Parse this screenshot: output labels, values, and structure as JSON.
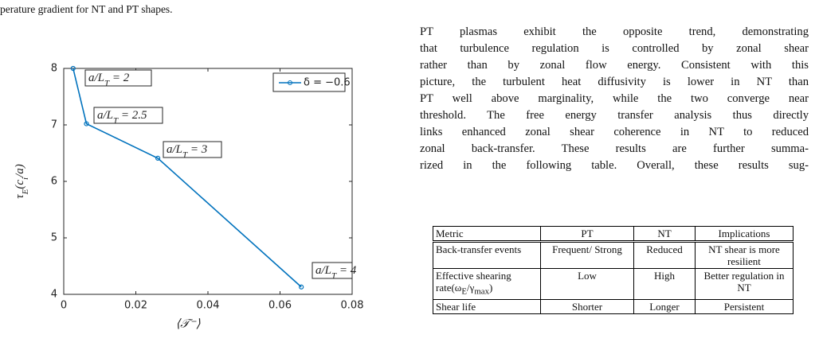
{
  "caption_tail": "perature gradient for NT and PT shapes.",
  "chart_data": {
    "type": "line",
    "x": [
      0.0026,
      0.0063,
      0.0261,
      0.0659
    ],
    "series": [
      {
        "name": "δ = −0.6",
        "color": "#0072bd",
        "values": [
          8.0,
          7.02,
          6.41,
          4.13
        ]
      }
    ],
    "xlim": [
      0,
      0.08
    ],
    "xticks": [
      0,
      0.02,
      0.04,
      0.06,
      0.08
    ],
    "ylim": [
      4,
      8
    ],
    "yticks": [
      4,
      5,
      6,
      7,
      8
    ],
    "x_label": "⟨𝒯⁻⟩",
    "y_label": [
      "τ",
      "E",
      "(c",
      "i",
      "/a)"
    ],
    "annotations": [
      [
        "a/L",
        "T",
        " = 2"
      ],
      [
        "a/L",
        "T",
        " = 2.5"
      ],
      [
        "a/L",
        "T",
        " = 3"
      ],
      [
        "a/L",
        "T",
        " = 4"
      ]
    ],
    "legend": "upper right",
    "grid": false
  },
  "paragraph": [
    "PT plasmas exhibit the opposite trend, demonstrating",
    "that turbulence regulation is controlled by zonal shear",
    "rather than by zonal flow energy. Consistent with this",
    "picture, the turbulent heat diffusivity is lower in NT than",
    "PT well above marginality, while the two converge near",
    "threshold. The free energy transfer analysis thus directly",
    "links enhanced zonal shear coherence in NT to reduced",
    "zonal back-transfer. These results are further summa-",
    "rized in the following table. Overall, these results sug-"
  ],
  "table": {
    "header": [
      "Metric",
      "PT",
      "NT",
      "Implications"
    ],
    "rows": [
      [
        "Back-transfer events",
        "Frequent/ Strong",
        "Reduced",
        "NT shear is more resilient"
      ],
      [
        "Effective shearing rate(ω",
        "Low",
        "High",
        "Better regulation in NT"
      ],
      [
        "Shear life",
        "Shorter",
        "Longer",
        "Persistent"
      ]
    ],
    "rate_sub": [
      "E",
      "/γ",
      "max",
      ")"
    ]
  }
}
